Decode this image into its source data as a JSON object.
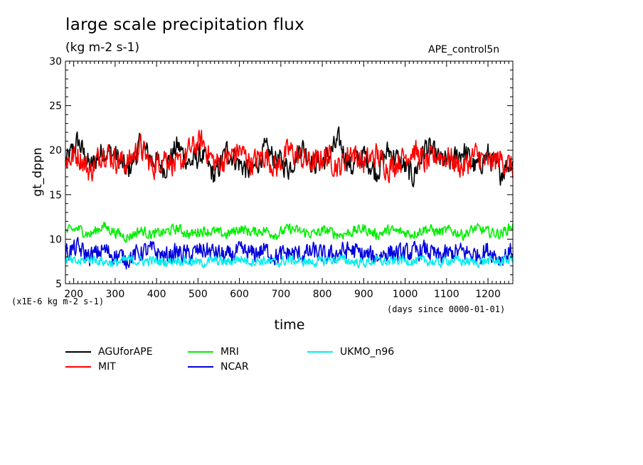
{
  "header": {
    "title": "large scale precipitation flux",
    "subtitle": "(kg m-2 s-1)",
    "run_label": "APE_control5n"
  },
  "axes": {
    "xlabel": "time",
    "ylabel": "gt_dppn",
    "y_unit_note": "(x1E-6 kg m-2 s-1)",
    "x_unit_note": "(days since 0000-01-01)"
  },
  "chart_data": {
    "type": "line",
    "title": "large scale precipitation flux",
    "subtitle": "(kg m-2 s-1)",
    "xlabel": "time",
    "ylabel": "gt_dppn",
    "xlim": [
      180,
      1260
    ],
    "ylim": [
      5,
      30
    ],
    "x_ticks": [
      200,
      300,
      400,
      500,
      600,
      700,
      800,
      900,
      1000,
      1100,
      1200
    ],
    "y_ticks": [
      5,
      10,
      15,
      20,
      25,
      30
    ],
    "x_tick_labels": [
      "200",
      "300",
      "400",
      "500",
      "600",
      "700",
      "800",
      "900",
      "1000",
      "1100",
      "1200"
    ],
    "y_tick_labels": [
      "5",
      "10",
      "15",
      "20",
      "25",
      "30"
    ],
    "grid": false,
    "legend_position": "bottom",
    "series": [
      {
        "name": "AGUforAPE",
        "color": "#000000",
        "x": [
          180,
          210,
          240,
          270,
          300,
          330,
          360,
          390,
          420,
          450,
          480,
          510,
          540,
          570,
          600,
          630,
          660,
          690,
          720,
          750,
          780,
          810,
          840,
          870,
          900,
          930,
          960,
          990,
          1020,
          1050,
          1080,
          1110,
          1140,
          1170,
          1200,
          1230,
          1260
        ],
        "y": [
          18.5,
          21.0,
          18.0,
          20.0,
          19.5,
          17.5,
          20.5,
          19.0,
          18.0,
          20.5,
          18.5,
          19.5,
          17.0,
          20.0,
          18.5,
          17.5,
          20.0,
          19.0,
          18.0,
          20.5,
          18.5,
          19.0,
          21.0,
          18.0,
          19.5,
          17.5,
          20.0,
          18.5,
          17.0,
          20.5,
          19.0,
          18.5,
          20.0,
          18.0,
          19.5,
          17.5,
          19.0
        ],
        "range": [
          15,
          23.5
        ]
      },
      {
        "name": "MIT",
        "color": "#ff0000",
        "x": [
          180,
          210,
          240,
          270,
          300,
          330,
          360,
          390,
          420,
          450,
          480,
          510,
          540,
          570,
          600,
          630,
          660,
          690,
          720,
          750,
          780,
          810,
          840,
          870,
          900,
          930,
          960,
          990,
          1020,
          1050,
          1080,
          1110,
          1140,
          1170,
          1200,
          1230,
          1260
        ],
        "y": [
          18.8,
          19.5,
          17.5,
          20.0,
          19.0,
          18.5,
          20.5,
          18.0,
          19.5,
          18.0,
          20.0,
          21.0,
          18.5,
          19.0,
          20.0,
          18.5,
          19.5,
          18.0,
          20.0,
          19.0,
          18.5,
          19.5,
          18.0,
          20.0,
          18.5,
          19.5,
          18.0,
          19.0,
          20.0,
          18.5,
          19.5,
          19.0,
          18.0,
          19.5,
          18.5,
          19.0,
          18.0
        ],
        "range": [
          15,
          24
        ]
      },
      {
        "name": "MRI",
        "color": "#00ee00",
        "x": [
          180,
          210,
          240,
          270,
          300,
          330,
          360,
          390,
          420,
          450,
          480,
          510,
          540,
          570,
          600,
          630,
          660,
          690,
          720,
          750,
          780,
          810,
          840,
          870,
          900,
          930,
          960,
          990,
          1020,
          1050,
          1080,
          1110,
          1140,
          1170,
          1200,
          1230,
          1260
        ],
        "y": [
          10.8,
          11.2,
          10.5,
          11.5,
          10.8,
          10.2,
          11.0,
          10.5,
          10.8,
          11.2,
          10.5,
          11.0,
          10.8,
          10.5,
          11.2,
          10.8,
          11.0,
          10.5,
          11.2,
          10.8,
          10.6,
          11.0,
          10.5,
          10.8,
          11.2,
          10.5,
          11.0,
          10.8,
          10.6,
          11.2,
          10.8,
          11.0,
          10.5,
          11.2,
          10.8,
          10.6,
          11.5
        ],
        "range": [
          9,
          12.8
        ]
      },
      {
        "name": "NCAR",
        "color": "#0000dd",
        "x": [
          180,
          210,
          240,
          270,
          300,
          330,
          360,
          390,
          420,
          450,
          480,
          510,
          540,
          570,
          600,
          630,
          660,
          690,
          720,
          750,
          780,
          810,
          840,
          870,
          900,
          930,
          960,
          990,
          1020,
          1050,
          1080,
          1110,
          1140,
          1170,
          1200,
          1230,
          1260
        ],
        "y": [
          8.5,
          9.0,
          8.0,
          8.8,
          8.2,
          7.8,
          8.5,
          8.8,
          8.0,
          8.5,
          8.2,
          8.8,
          8.5,
          8.0,
          8.6,
          8.3,
          8.8,
          8.0,
          8.5,
          8.2,
          8.6,
          8.0,
          8.5,
          8.8,
          8.2,
          8.0,
          8.6,
          8.3,
          8.5,
          8.8,
          8.0,
          8.4,
          8.6,
          8.2,
          8.8,
          7.8,
          8.8
        ],
        "range": [
          6,
          12.8
        ]
      },
      {
        "name": "UKMO_n96",
        "color": "#00eeee",
        "x": [
          180,
          210,
          240,
          270,
          300,
          330,
          360,
          390,
          420,
          450,
          480,
          510,
          540,
          570,
          600,
          630,
          660,
          690,
          720,
          750,
          780,
          810,
          840,
          870,
          900,
          930,
          960,
          990,
          1020,
          1050,
          1080,
          1110,
          1140,
          1170,
          1200,
          1230,
          1260
        ],
        "y": [
          7.6,
          7.4,
          7.8,
          7.5,
          7.3,
          7.7,
          7.5,
          7.6,
          7.4,
          7.7,
          7.5,
          7.3,
          7.6,
          7.4,
          7.8,
          7.5,
          7.6,
          7.3,
          7.7,
          7.5,
          7.4,
          7.6,
          7.8,
          7.5,
          7.3,
          7.6,
          7.4,
          7.7,
          7.5,
          7.6,
          7.3,
          7.7,
          7.5,
          7.4,
          7.6,
          7.5,
          7.8
        ],
        "range": [
          6,
          9.5
        ]
      }
    ]
  }
}
